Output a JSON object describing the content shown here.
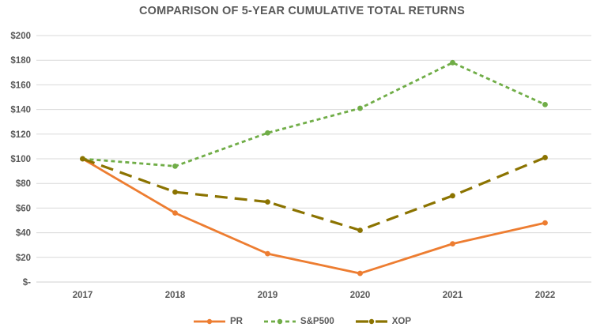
{
  "chart_data": {
    "type": "line",
    "title": "COMPARISON OF 5-YEAR CUMULATIVE TOTAL RETURNS",
    "categories": [
      "2017",
      "2018",
      "2019",
      "2020",
      "2021",
      "2022"
    ],
    "series": [
      {
        "name": "PR",
        "values": [
          100,
          56,
          23,
          7,
          31,
          48
        ],
        "color": "#ED7D31",
        "dash": "solid",
        "stroke_width": 2.8
      },
      {
        "name": "S&P500",
        "values": [
          100,
          94,
          121,
          141,
          178,
          144
        ],
        "color": "#70AD47",
        "dash": "short-dash",
        "stroke_width": 2.8
      },
      {
        "name": "XOP",
        "values": [
          100,
          73,
          65,
          42,
          70,
          101
        ],
        "color": "#8B7300",
        "dash": "long-dash",
        "stroke_width": 3.2
      }
    ],
    "y_ticks": [
      {
        "label": "$200",
        "value": 200
      },
      {
        "label": "$180",
        "value": 180
      },
      {
        "label": "$160",
        "value": 160
      },
      {
        "label": "$140",
        "value": 140
      },
      {
        "label": "$120",
        "value": 120
      },
      {
        "label": "$100",
        "value": 100
      },
      {
        "label": "$80",
        "value": 80
      },
      {
        "label": "$60",
        "value": 60
      },
      {
        "label": "$40",
        "value": 40
      },
      {
        "label": "$20",
        "value": 20
      },
      {
        "label": "$-",
        "value": 0
      }
    ],
    "ylim": [
      0,
      200
    ],
    "xlabel": "",
    "ylabel": "",
    "grid": true,
    "legend_position": "bottom",
    "colors": {
      "text": "#595959",
      "gridline": "#D9D9D9",
      "axis_line": "#D0D0D0",
      "background": "#FFFFFF"
    }
  }
}
